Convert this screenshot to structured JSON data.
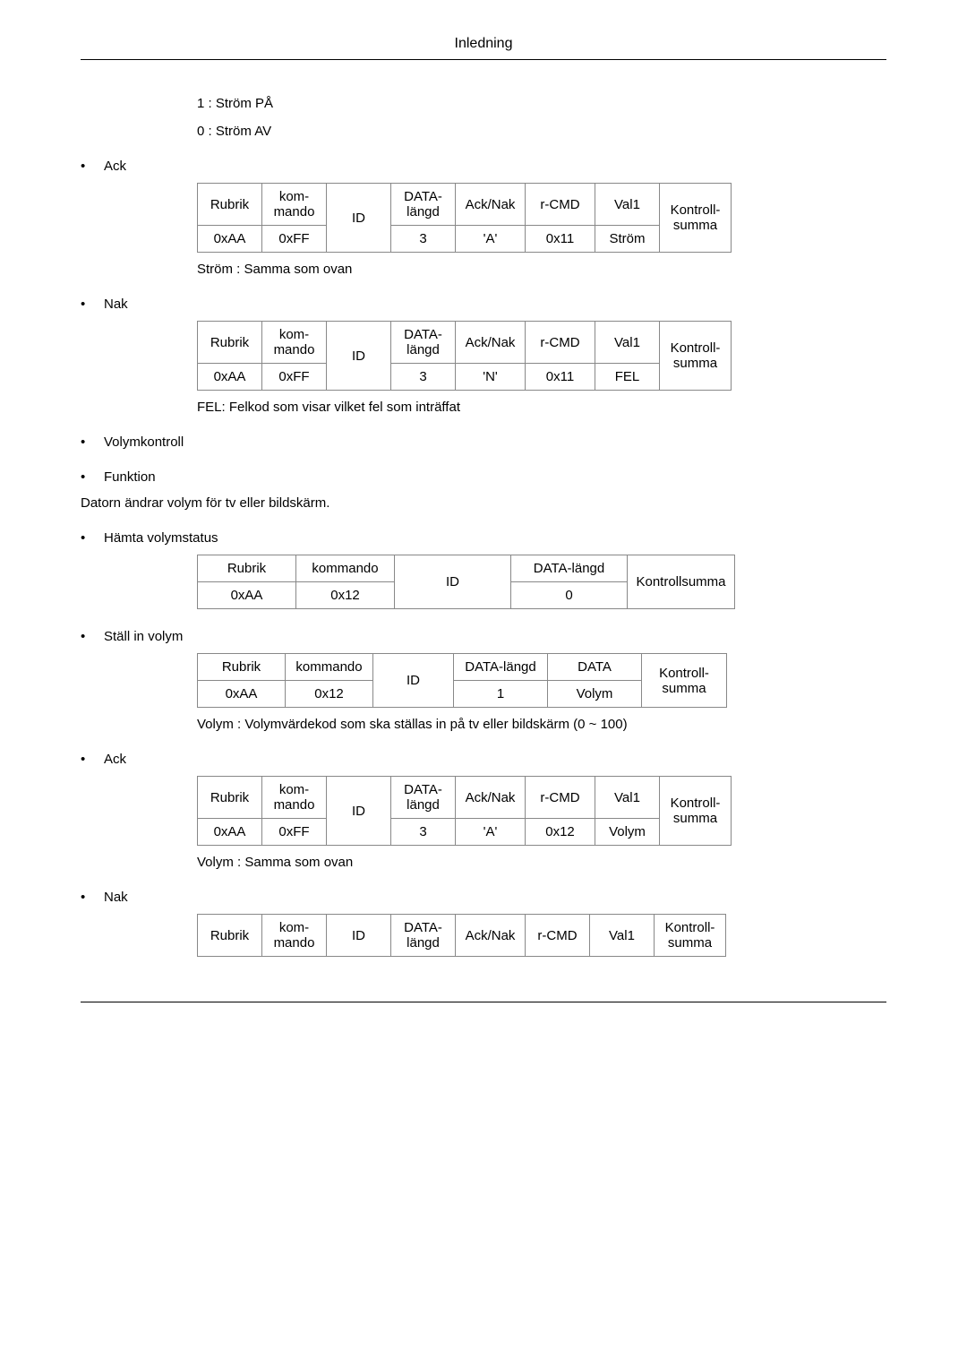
{
  "header": {
    "title": "Inledning"
  },
  "intro": {
    "line1": "1 : Ström PÅ",
    "line2": "0 : Ström AV"
  },
  "sections": {
    "ack1": {
      "label": "Ack",
      "headers": [
        "Rubrik",
        "kom-\nmando",
        "ID",
        "DATA-\nlängd",
        "Ack/Nak",
        "r-CMD",
        "Val1",
        "Kontroll-\nsumma"
      ],
      "row": [
        "0xAA",
        "0xFF",
        "",
        "3",
        "'A'",
        "0x11",
        "Ström"
      ],
      "note": "Ström : Samma som ovan"
    },
    "nak1": {
      "label": "Nak",
      "headers": [
        "Rubrik",
        "kom-\nmando",
        "ID",
        "DATA-\nlängd",
        "Ack/Nak",
        "r-CMD",
        "Val1",
        "Kontroll-\nsumma"
      ],
      "row": [
        "0xAA",
        "0xFF",
        "",
        "3",
        "'N'",
        "0x11",
        "FEL"
      ],
      "note": "FEL: Felkod som visar vilket fel som inträffat"
    },
    "volym": {
      "label": "Volymkontroll",
      "funktion": {
        "label": "Funktion",
        "text": "Datorn ändrar volym för tv eller bildskärm."
      },
      "hamta": {
        "label": "Hämta volymstatus",
        "headers": [
          "Rubrik",
          "kommando",
          "ID",
          "DATA-längd",
          "Kontrollsumma"
        ],
        "row": [
          "0xAA",
          "0x12",
          "",
          "0"
        ]
      },
      "stall": {
        "label": "Ställ in volym",
        "headers": [
          "Rubrik",
          "kommando",
          "ID",
          "DATA-längd",
          "DATA",
          "Kontroll-\nsumma"
        ],
        "row": [
          "0xAA",
          "0x12",
          "",
          "1",
          "Volym"
        ],
        "note": "Volym : Volymvärdekod som ska ställas in på tv eller bildskärm (0 ~ 100)"
      },
      "ack": {
        "label": "Ack",
        "headers": [
          "Rubrik",
          "kom-\nmando",
          "ID",
          "DATA-\nlängd",
          "Ack/Nak",
          "r-CMD",
          "Val1",
          "Kontroll-\nsumma"
        ],
        "row": [
          "0xAA",
          "0xFF",
          "",
          "3",
          "'A'",
          "0x12",
          "Volym"
        ],
        "note": "Volym : Samma som ovan"
      },
      "nak": {
        "label": "Nak",
        "headers": [
          "Rubrik",
          "kom-\nmando",
          "ID",
          "DATA-\nlängd",
          "Ack/Nak",
          "r-CMD",
          "Val1",
          "Kontroll-\nsumma"
        ]
      }
    }
  },
  "style": {
    "font_family": "Arial",
    "body_fontsize_pt": 11,
    "text_color": "#000000",
    "background_color": "#ffffff",
    "table_border_color": "#888888",
    "rule_color": "#000000",
    "bullet_glyph": "•"
  }
}
